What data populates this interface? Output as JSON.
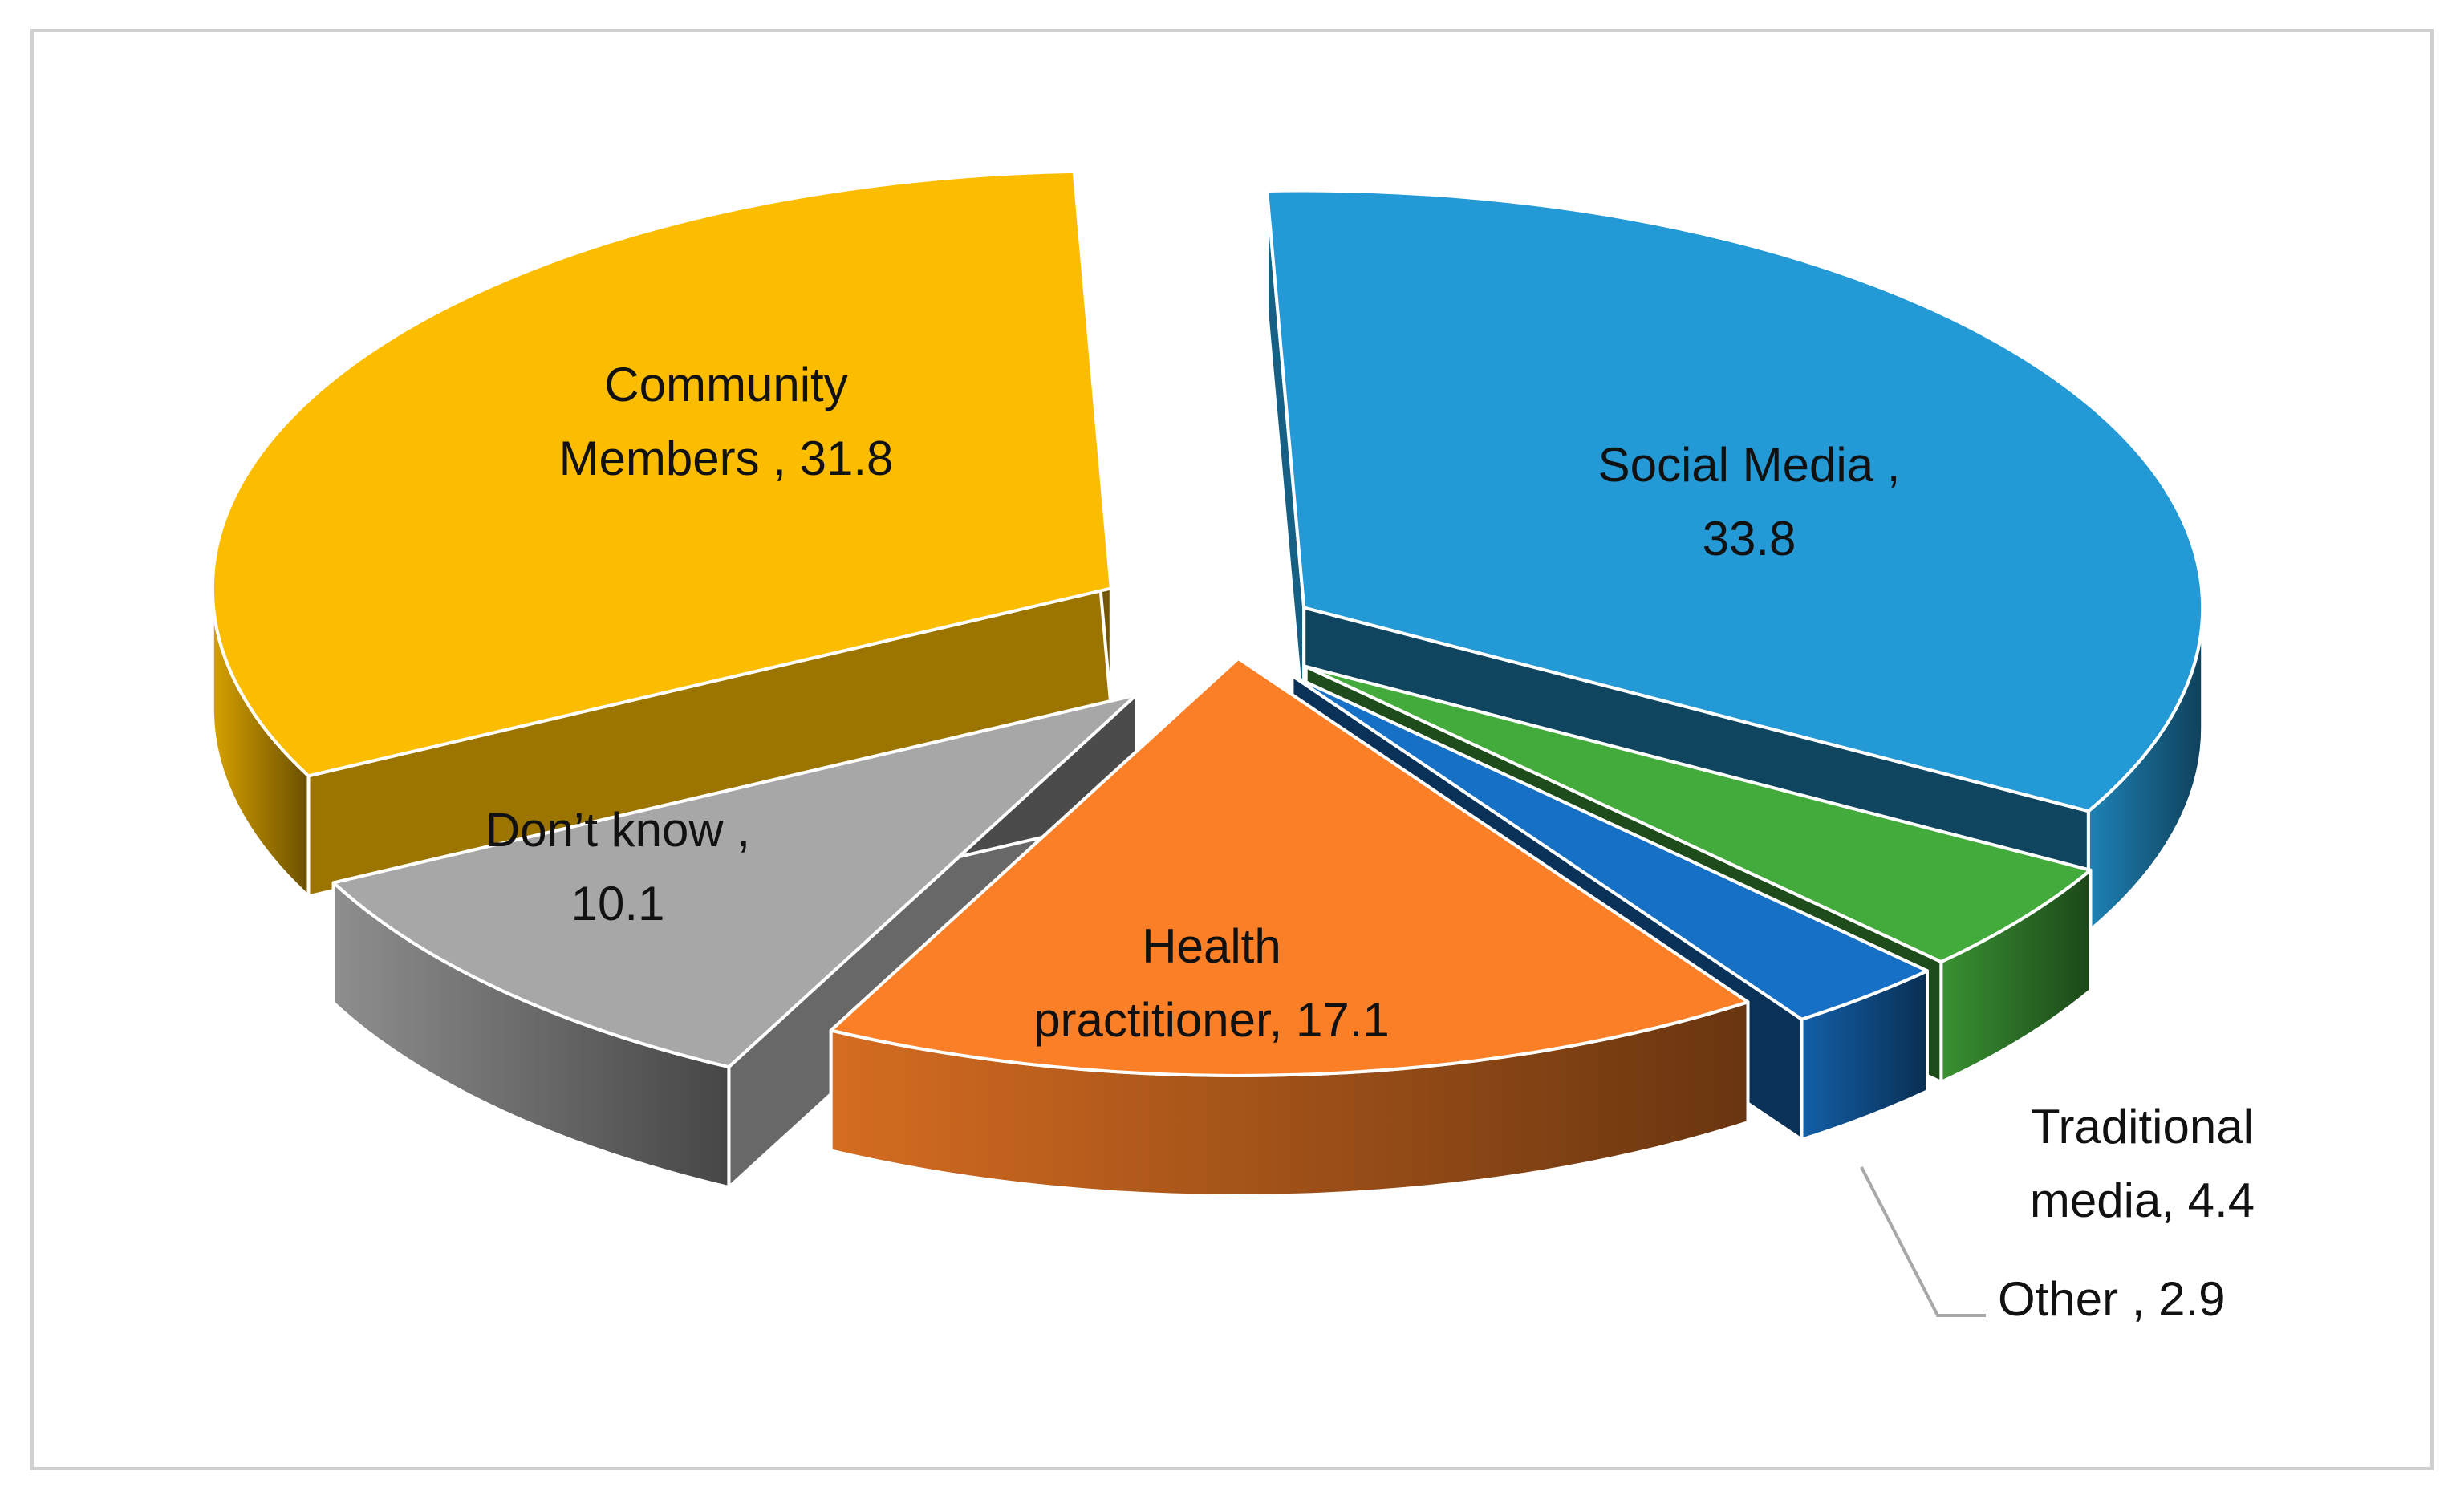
{
  "chart_data": {
    "type": "pie",
    "title": "",
    "three_d": true,
    "exploded": true,
    "slices": [
      {
        "label": "Social Media",
        "value": 33.8,
        "label_lines": [
          "Social Media ,",
          "33.8"
        ],
        "color": "#2399d6"
      },
      {
        "label": "Traditional media",
        "value": 4.4,
        "label_lines": [
          "Traditional",
          "media, 4.4"
        ],
        "color": "#43ab3b"
      },
      {
        "label": "Other",
        "value": 2.9,
        "label_lines": [
          "Other , 2.9"
        ],
        "color": "#1670c6"
      },
      {
        "label": "Health practitioner",
        "value": 17.1,
        "label_lines": [
          "Health",
          "practitioner, 17.1"
        ],
        "color": "#fa7f27"
      },
      {
        "label": "Don’t know",
        "value": 10.1,
        "label_lines": [
          "Don’t know ,",
          "10.1"
        ],
        "color": "#a7a7a7"
      },
      {
        "label": "Community Members",
        "value": 31.8,
        "label_lines": [
          "Community",
          "Members , 31.8"
        ],
        "color": "#fcbd00"
      }
    ]
  }
}
